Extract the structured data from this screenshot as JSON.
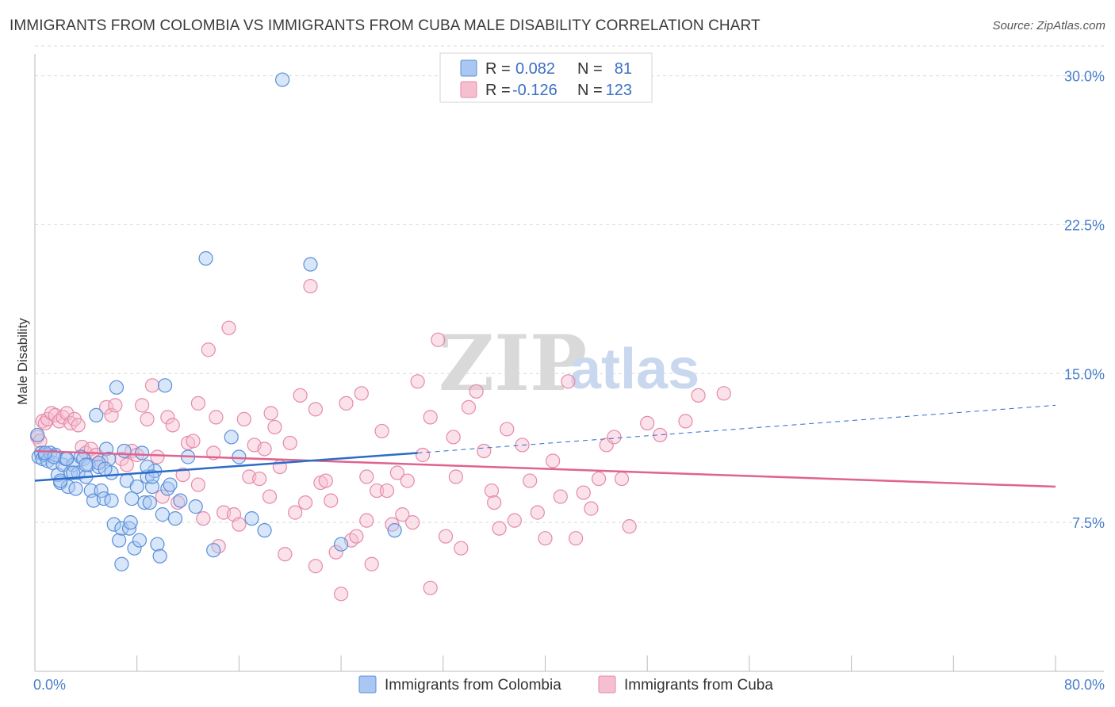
{
  "title": "IMMIGRANTS FROM COLOMBIA VS IMMIGRANTS FROM CUBA MALE DISABILITY CORRELATION CHART",
  "source": "Source: ZipAtlas.com",
  "watermark": {
    "zip": "ZIP",
    "atlas": "atlas"
  },
  "colors": {
    "colombia_fill": "#a9c7f2",
    "colombia_stroke": "#5b8fd9",
    "colombia_line": "#2b6cc9",
    "cuba_fill": "#f6bfd0",
    "cuba_stroke": "#e58aa8",
    "cuba_line": "#e0628f",
    "grid": "#d9d9d9",
    "tick_label": "#4a7fc9"
  },
  "legend": {
    "rows": [
      {
        "r_label": "R =",
        "r_value": "0.082",
        "n_label": "N =",
        "n_value": "81"
      },
      {
        "r_label": "R =",
        "r_value": "-0.126",
        "n_label": "N =",
        "n_value": "123"
      }
    ]
  },
  "chart_data": {
    "type": "scatter",
    "xlabel": "",
    "ylabel": "Male Disability",
    "xlim": [
      0,
      80
    ],
    "ylim": [
      0,
      31.5
    ],
    "x_tick_labels": [
      "0.0%",
      "80.0%"
    ],
    "y_ticks": [
      7.5,
      15.0,
      22.5,
      30.0
    ],
    "y_tick_labels": [
      "7.5%",
      "15.0%",
      "22.5%",
      "30.0%"
    ],
    "series": [
      {
        "name": "Immigrants from Colombia",
        "r": 0.082,
        "n": 81,
        "trend": {
          "x0": 0,
          "y0": 9.6,
          "x1": 30,
          "y1": 11.0,
          "dashed_to_x": 80,
          "dashed_to_y": 13.4
        },
        "points": [
          [
            0.2,
            11.9
          ],
          [
            0.3,
            10.8
          ],
          [
            0.5,
            11.0
          ],
          [
            0.6,
            10.7
          ],
          [
            0.8,
            10.9
          ],
          [
            1.0,
            10.6
          ],
          [
            1.2,
            11.0
          ],
          [
            1.4,
            10.5
          ],
          [
            1.6,
            10.9
          ],
          [
            1.8,
            9.9
          ],
          [
            2.0,
            9.5
          ],
          [
            2.2,
            10.4
          ],
          [
            2.4,
            10.7
          ],
          [
            2.6,
            9.3
          ],
          [
            2.8,
            10.0
          ],
          [
            3.0,
            10.4
          ],
          [
            3.2,
            9.2
          ],
          [
            3.4,
            10.0
          ],
          [
            3.6,
            10.8
          ],
          [
            3.8,
            10.7
          ],
          [
            4.0,
            9.8
          ],
          [
            4.2,
            10.4
          ],
          [
            4.4,
            9.1
          ],
          [
            4.6,
            8.6
          ],
          [
            4.8,
            12.9
          ],
          [
            5.0,
            10.3
          ],
          [
            5.2,
            9.1
          ],
          [
            5.4,
            8.7
          ],
          [
            5.6,
            11.2
          ],
          [
            5.8,
            10.7
          ],
          [
            6.0,
            10.0
          ],
          [
            6.2,
            7.4
          ],
          [
            6.4,
            14.3
          ],
          [
            6.6,
            6.6
          ],
          [
            6.8,
            7.2
          ],
          [
            7.0,
            11.1
          ],
          [
            7.2,
            9.6
          ],
          [
            7.4,
            7.2
          ],
          [
            7.6,
            8.7
          ],
          [
            7.8,
            6.2
          ],
          [
            8.0,
            9.3
          ],
          [
            8.2,
            6.6
          ],
          [
            8.4,
            11.0
          ],
          [
            8.6,
            8.5
          ],
          [
            8.8,
            9.8
          ],
          [
            9.0,
            8.5
          ],
          [
            9.2,
            9.3
          ],
          [
            9.4,
            10.1
          ],
          [
            9.6,
            6.4
          ],
          [
            9.8,
            5.8
          ],
          [
            10.0,
            7.9
          ],
          [
            10.2,
            14.4
          ],
          [
            10.4,
            9.2
          ],
          [
            10.6,
            9.4
          ],
          [
            11.0,
            7.7
          ],
          [
            11.4,
            8.6
          ],
          [
            12.0,
            10.8
          ],
          [
            12.6,
            8.3
          ],
          [
            13.4,
            20.8
          ],
          [
            14.0,
            6.1
          ],
          [
            15.4,
            11.8
          ],
          [
            16.0,
            10.8
          ],
          [
            17.0,
            7.7
          ],
          [
            18.0,
            7.1
          ],
          [
            19.4,
            29.8
          ],
          [
            21.6,
            20.5
          ],
          [
            24.0,
            6.4
          ],
          [
            28.2,
            7.1
          ],
          [
            3.0,
            10.0
          ],
          [
            2.5,
            10.7
          ],
          [
            5.0,
            10.5
          ],
          [
            6.0,
            8.6
          ],
          [
            1.5,
            10.8
          ],
          [
            4.0,
            10.4
          ],
          [
            7.5,
            7.5
          ],
          [
            5.5,
            10.2
          ],
          [
            8.8,
            10.3
          ],
          [
            9.2,
            9.8
          ],
          [
            0.8,
            11.0
          ],
          [
            2.0,
            9.6
          ],
          [
            6.8,
            5.4
          ]
        ]
      },
      {
        "name": "Immigrants from Cuba",
        "r": -0.126,
        "n": 123,
        "trend": {
          "x0": 0,
          "y0": 11.1,
          "x1": 80,
          "y1": 9.3
        },
        "points": [
          [
            0.2,
            11.8
          ],
          [
            0.4,
            11.6
          ],
          [
            0.6,
            12.6
          ],
          [
            0.8,
            12.5
          ],
          [
            1.0,
            12.7
          ],
          [
            1.3,
            13.0
          ],
          [
            1.6,
            12.9
          ],
          [
            1.9,
            12.6
          ],
          [
            2.2,
            12.8
          ],
          [
            2.5,
            13.0
          ],
          [
            2.8,
            12.5
          ],
          [
            3.1,
            12.7
          ],
          [
            3.4,
            12.4
          ],
          [
            3.7,
            11.3
          ],
          [
            4.0,
            11.0
          ],
          [
            4.4,
            11.2
          ],
          [
            4.8,
            10.9
          ],
          [
            5.2,
            10.6
          ],
          [
            5.6,
            13.3
          ],
          [
            6.0,
            12.9
          ],
          [
            6.3,
            13.4
          ],
          [
            6.8,
            10.7
          ],
          [
            7.2,
            10.4
          ],
          [
            7.6,
            11.1
          ],
          [
            8.0,
            10.9
          ],
          [
            8.4,
            13.4
          ],
          [
            8.8,
            12.7
          ],
          [
            9.2,
            14.4
          ],
          [
            9.6,
            10.8
          ],
          [
            10.0,
            8.8
          ],
          [
            10.4,
            12.8
          ],
          [
            10.8,
            12.4
          ],
          [
            11.2,
            8.5
          ],
          [
            11.6,
            9.9
          ],
          [
            12.0,
            11.5
          ],
          [
            12.4,
            11.6
          ],
          [
            12.8,
            9.4
          ],
          [
            13.2,
            7.7
          ],
          [
            13.6,
            16.2
          ],
          [
            14.0,
            11.0
          ],
          [
            14.4,
            6.3
          ],
          [
            14.8,
            8.0
          ],
          [
            15.2,
            17.3
          ],
          [
            15.6,
            7.9
          ],
          [
            16.0,
            7.4
          ],
          [
            16.4,
            12.7
          ],
          [
            16.8,
            9.8
          ],
          [
            17.2,
            11.4
          ],
          [
            17.6,
            9.7
          ],
          [
            18.0,
            11.2
          ],
          [
            18.4,
            8.8
          ],
          [
            18.8,
            12.3
          ],
          [
            19.2,
            10.3
          ],
          [
            19.6,
            5.9
          ],
          [
            20.0,
            11.5
          ],
          [
            20.4,
            8.0
          ],
          [
            20.8,
            13.9
          ],
          [
            21.2,
            8.5
          ],
          [
            21.6,
            19.4
          ],
          [
            22.0,
            5.3
          ],
          [
            22.4,
            9.5
          ],
          [
            22.8,
            9.6
          ],
          [
            23.2,
            8.6
          ],
          [
            23.6,
            6.0
          ],
          [
            24.0,
            3.9
          ],
          [
            24.4,
            13.5
          ],
          [
            24.8,
            6.6
          ],
          [
            25.2,
            6.8
          ],
          [
            25.6,
            14.0
          ],
          [
            26.0,
            7.6
          ],
          [
            26.4,
            5.4
          ],
          [
            26.8,
            9.1
          ],
          [
            27.2,
            12.1
          ],
          [
            27.6,
            9.1
          ],
          [
            28.0,
            7.4
          ],
          [
            28.4,
            10.0
          ],
          [
            28.8,
            7.9
          ],
          [
            29.2,
            9.6
          ],
          [
            29.6,
            7.5
          ],
          [
            30.0,
            14.6
          ],
          [
            30.4,
            10.9
          ],
          [
            31.0,
            4.2
          ],
          [
            31.6,
            16.7
          ],
          [
            32.2,
            6.8
          ],
          [
            32.8,
            11.8
          ],
          [
            33.4,
            6.2
          ],
          [
            34.0,
            13.3
          ],
          [
            34.6,
            14.1
          ],
          [
            35.2,
            11.1
          ],
          [
            35.8,
            9.1
          ],
          [
            36.4,
            7.2
          ],
          [
            37.0,
            12.2
          ],
          [
            37.6,
            7.6
          ],
          [
            38.2,
            11.4
          ],
          [
            38.8,
            9.6
          ],
          [
            39.4,
            8.0
          ],
          [
            40.0,
            6.7
          ],
          [
            40.6,
            10.6
          ],
          [
            41.2,
            8.8
          ],
          [
            41.8,
            14.6
          ],
          [
            42.4,
            6.7
          ],
          [
            43.0,
            9.0
          ],
          [
            43.6,
            8.2
          ],
          [
            44.2,
            9.7
          ],
          [
            44.8,
            11.4
          ],
          [
            45.4,
            11.8
          ],
          [
            46.0,
            9.7
          ],
          [
            46.6,
            7.3
          ],
          [
            48.0,
            12.5
          ],
          [
            49.0,
            11.9
          ],
          [
            51.0,
            12.6
          ],
          [
            52.0,
            13.9
          ],
          [
            54.0,
            14.0
          ],
          [
            12.8,
            13.5
          ],
          [
            14.2,
            12.8
          ],
          [
            31.0,
            12.8
          ],
          [
            33.0,
            9.8
          ],
          [
            22.0,
            13.2
          ],
          [
            18.5,
            13.0
          ],
          [
            26.0,
            9.8
          ],
          [
            36.0,
            8.5
          ]
        ]
      }
    ]
  },
  "bottom_legend": [
    {
      "label": "Immigrants from Colombia"
    },
    {
      "label": "Immigrants from Cuba"
    }
  ]
}
